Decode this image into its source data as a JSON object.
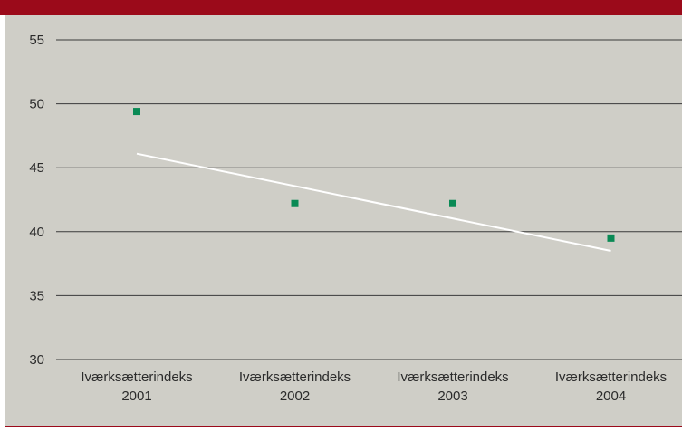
{
  "colors": {
    "top_band": "#9b0a1a",
    "bottom_band": "#9b0a1a",
    "plot_background": "#cfcec7",
    "gridline": "#3a3a3a",
    "marker": "#0a8a55",
    "trendline": "#ffffff",
    "text": "#2b2b2b"
  },
  "chart_data": {
    "type": "scatter",
    "title": "",
    "xlabel": "",
    "ylabel": "",
    "categories": [
      [
        "Iværksætterindeks",
        "2001"
      ],
      [
        "Iværksætterindeks",
        "2002"
      ],
      [
        "Iværksætterindeks",
        "2003"
      ],
      [
        "Iværksætterindeks",
        "2004"
      ]
    ],
    "values": [
      49.4,
      42.2,
      42.2,
      39.5
    ],
    "trendline": {
      "start": 46.1,
      "end": 38.5
    },
    "yticks": [
      30,
      35,
      40,
      45,
      50,
      55
    ],
    "ylim": [
      30,
      55
    ],
    "grid": true,
    "legend": "none"
  }
}
